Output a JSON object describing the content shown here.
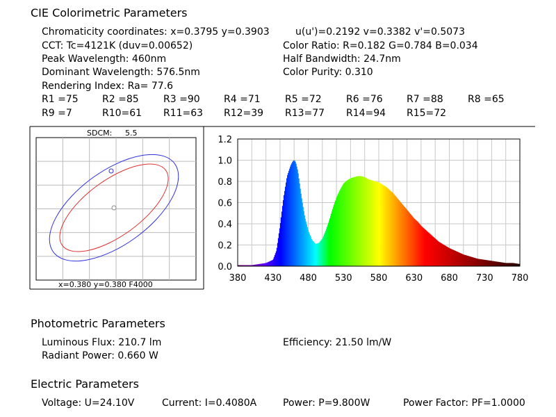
{
  "colorimetric": {
    "title": "CIE Colorimetric Parameters",
    "chromaticity": "Chromaticity coordinates: x=0.3795 y=0.3903",
    "uv": "u(u')=0.2192 v=0.3382 v'=0.5073",
    "cct": "CCT: Tc=4121K (duv=0.00652)",
    "color_ratio": "Color Ratio: R=0.182  G=0.784  B=0.034",
    "peak": "Peak Wavelength: 460nm",
    "half_bandwidth": "Half Bandwidth: 24.7nm",
    "dominant": "Dominant Wavelength: 576.5nm",
    "purity": "Color Purity: 0.310",
    "rendering": "Rendering Index: Ra= 77.6",
    "r_values": [
      "R1 =75",
      "R2 =85",
      "R3 =90",
      "R4 =71",
      "R5 =72",
      "R6 =76",
      "R7 =88",
      "R8 =65",
      "R9 =7",
      "R10=61",
      "R11=63",
      "R12=39",
      "R13=77",
      "R14=94",
      "R15=72"
    ]
  },
  "sdcm_panel": {
    "sdcm_label": "SDCM:",
    "sdcm_value": "5.5",
    "footer": "x=0.380   y=0.380  F4000"
  },
  "photometric": {
    "title": "Photometric Parameters",
    "flux": "Luminous Flux: 210.7 lm",
    "efficiency": "Efficiency: 21.50 lm/W",
    "radiant": "Radiant Power: 0.660 W"
  },
  "electric": {
    "title": "Electric Parameters",
    "voltage": "Voltage: U=24.10V",
    "current": "Current: I=0.4080A",
    "power": "Power: P=9.800W",
    "pf": "Power Factor: PF=1.0000"
  },
  "chart_data": {
    "type": "area",
    "xlim": [
      380,
      780
    ],
    "ylim": [
      0,
      1.2
    ],
    "x_ticks": [
      "380",
      "430",
      "480",
      "530",
      "580",
      "630",
      "680",
      "730",
      "780"
    ],
    "y_ticks": [
      "0.0",
      "0.2",
      "0.4",
      "0.6",
      "0.8",
      "1.0",
      "1.2"
    ],
    "grid": true,
    "series": [
      {
        "x": [
          380,
          400,
          410,
          420,
          430,
          435,
          440,
          445,
          450,
          455,
          458,
          460,
          462,
          465,
          470,
          475,
          480,
          485,
          490,
          495,
          500,
          505,
          510,
          515,
          520,
          525,
          530,
          535,
          540,
          545,
          550,
          555,
          560,
          565,
          570,
          575,
          580,
          585,
          590,
          595,
          600,
          605,
          610,
          615,
          620,
          625,
          630,
          635,
          640,
          645,
          650,
          655,
          660,
          665,
          670,
          675,
          680,
          690,
          700,
          710,
          720,
          730,
          740,
          750,
          760,
          770,
          780
        ],
        "y": [
          0.01,
          0.01,
          0.02,
          0.03,
          0.06,
          0.15,
          0.38,
          0.65,
          0.85,
          0.95,
          0.99,
          1.0,
          0.98,
          0.9,
          0.66,
          0.46,
          0.33,
          0.25,
          0.21,
          0.22,
          0.26,
          0.34,
          0.44,
          0.55,
          0.65,
          0.72,
          0.78,
          0.81,
          0.83,
          0.84,
          0.85,
          0.85,
          0.84,
          0.82,
          0.81,
          0.8,
          0.79,
          0.77,
          0.75,
          0.72,
          0.69,
          0.65,
          0.61,
          0.57,
          0.53,
          0.49,
          0.45,
          0.42,
          0.38,
          0.35,
          0.32,
          0.29,
          0.26,
          0.23,
          0.21,
          0.19,
          0.17,
          0.14,
          0.11,
          0.09,
          0.07,
          0.06,
          0.05,
          0.04,
          0.03,
          0.03,
          0.02
        ]
      }
    ]
  }
}
